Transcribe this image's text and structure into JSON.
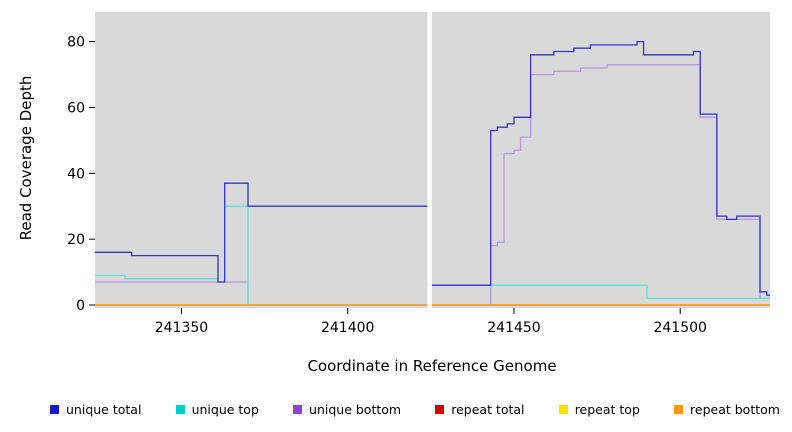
{
  "chart_data": {
    "type": "line",
    "subtype": "step",
    "xlabel": "Coordinate in Reference Genome",
    "ylabel": "Read Coverage Depth",
    "xlim": [
      241324,
      241527
    ],
    "ylim": [
      0,
      89
    ],
    "x_ticks": [
      241350,
      241400,
      241450,
      241500
    ],
    "y_ticks": [
      0,
      20,
      40,
      60,
      80
    ],
    "plot_bg": "#d9d9d9",
    "gap": {
      "x_start": 241424.0,
      "x_end": 241425.3
    },
    "draw_order": [
      3,
      4,
      2,
      1,
      0,
      5
    ],
    "legend_position": "bottom",
    "series": [
      {
        "name": "unique total",
        "color": "#1a1acc",
        "line_color": "#3333cc",
        "points": [
          [
            241324,
            16
          ],
          [
            241335,
            15
          ],
          [
            241361,
            7
          ],
          [
            241363,
            37
          ],
          [
            241370,
            30
          ],
          [
            241424.6,
            6
          ],
          [
            241443,
            53
          ],
          [
            241445,
            54
          ],
          [
            241448,
            55
          ],
          [
            241450,
            57
          ],
          [
            241455,
            76
          ],
          [
            241462,
            77
          ],
          [
            241468,
            78
          ],
          [
            241473,
            79
          ],
          [
            241487,
            80
          ],
          [
            241489,
            76
          ],
          [
            241504,
            77
          ],
          [
            241506,
            58
          ],
          [
            241511,
            27
          ],
          [
            241514,
            26
          ],
          [
            241517,
            27
          ],
          [
            241524,
            4
          ],
          [
            241526,
            3
          ]
        ]
      },
      {
        "name": "unique top",
        "color": "#00cccc",
        "line_color": "#5fe0e0",
        "points": [
          [
            241324,
            9
          ],
          [
            241333,
            8
          ],
          [
            241361,
            7
          ],
          [
            241363,
            30
          ],
          [
            241370,
            0
          ],
          [
            241424.6,
            6
          ],
          [
            241490,
            2
          ],
          [
            241527,
            2
          ]
        ]
      },
      {
        "name": "unique bottom",
        "color": "#8f46c6",
        "line_color": "#bb97e3",
        "points": [
          [
            241324,
            7
          ],
          [
            241370,
            0
          ],
          [
            241443,
            18
          ],
          [
            241445,
            19
          ],
          [
            241447,
            46
          ],
          [
            241450,
            47
          ],
          [
            241452,
            51
          ],
          [
            241455,
            70
          ],
          [
            241462,
            71
          ],
          [
            241470,
            72
          ],
          [
            241478,
            73
          ],
          [
            241504,
            73
          ],
          [
            241506,
            57
          ],
          [
            241511,
            26
          ],
          [
            241524,
            2
          ],
          [
            241527,
            2
          ]
        ]
      },
      {
        "name": "repeat total",
        "color": "#cc0000",
        "line_color": "#cc0000",
        "points": [
          [
            241324,
            0
          ],
          [
            241527,
            0
          ]
        ]
      },
      {
        "name": "repeat top",
        "color": "#f5e400",
        "line_color": "#f5e400",
        "points": [
          [
            241324,
            0
          ],
          [
            241527,
            0
          ]
        ]
      },
      {
        "name": "repeat bottom",
        "color": "#ff9900",
        "line_color": "#ffa020",
        "points": [
          [
            241324,
            0
          ],
          [
            241527,
            0
          ]
        ]
      }
    ]
  }
}
